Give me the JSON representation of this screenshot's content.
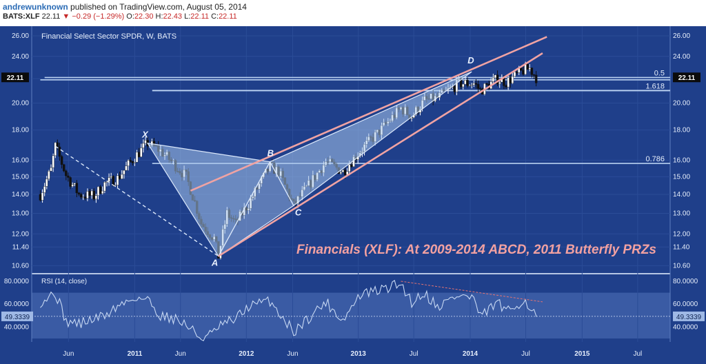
{
  "header": {
    "author": "andrewunknown",
    "published": "published on TradingView.com, August 05, 2014",
    "symbol": "BATS:XLF",
    "last": "22.11",
    "change": "−0.29 (−1.29%)",
    "o_label": "O:",
    "o": "22.30",
    "h_label": "H:",
    "h": "22.43",
    "l_label": "L:",
    "l": "22.11",
    "c_label": "C:",
    "c": "22.11"
  },
  "colors": {
    "background": "#1f3f8a",
    "rsi_band": "#3a5ba4",
    "candle_up": "#ffffff",
    "candle_down": "#111111",
    "pattern_fill": "#a8c6ec",
    "pattern_line": "#dbe8fb",
    "channel": "#f0a3a3",
    "level": "#b9d0f0",
    "rsi_line": "#c7d8f3",
    "title_text": "#f2a1a1"
  },
  "chart_data": [
    {
      "type": "candlestick",
      "subtitle": "Financial Select Sector SPDR, W, BATS",
      "annotation": "Financials (XLF): At 2009-2014 ABCD, 2011 Butterfly PRZs",
      "ylim": [
        10.3,
        27.0
      ],
      "y_scale": "log",
      "y_ticks": [
        "26.00",
        "24.00",
        "22.00",
        "20.00",
        "18.00",
        "16.00",
        "15.00",
        "14.00",
        "13.00",
        "12.00",
        "11.40",
        "10.60"
      ],
      "last_price_label": "22.11",
      "x_ticks": [
        "Jun",
        "2011",
        "Jun",
        "2012",
        "Jun",
        "2013",
        "Jul",
        "2014",
        "Jul",
        "2015",
        "Jul"
      ],
      "grid": true,
      "series": [
        {
          "name": "XLF weekly close",
          "x": [
            "2010-03-01",
            "2010-04-05",
            "2010-04-19",
            "2010-05-24",
            "2010-07-05",
            "2010-08-23",
            "2010-09-27",
            "2010-11-08",
            "2011-01-03",
            "2011-02-14",
            "2011-03-28",
            "2011-05-09",
            "2011-06-20",
            "2011-08-08",
            "2011-09-19",
            "2011-10-03",
            "2011-10-31",
            "2011-11-28",
            "2012-01-09",
            "2012-03-19",
            "2012-04-16",
            "2012-06-04",
            "2012-07-23",
            "2012-09-17",
            "2012-11-12",
            "2013-01-07",
            "2013-03-11",
            "2013-05-20",
            "2013-06-24",
            "2013-08-05",
            "2013-09-16",
            "2013-11-25",
            "2014-01-13",
            "2014-02-03",
            "2014-03-31",
            "2014-04-28",
            "2014-06-23",
            "2014-07-14",
            "2014-08-04"
          ],
          "values": [
            14.0,
            15.4,
            16.9,
            15.1,
            14.0,
            13.9,
            14.6,
            14.9,
            16.2,
            17.1,
            16.6,
            15.8,
            15.0,
            12.5,
            11.8,
            11.0,
            13.0,
            12.5,
            13.5,
            15.6,
            15.3,
            13.4,
            14.5,
            15.9,
            15.3,
            16.6,
            17.9,
            19.6,
            19.0,
            20.2,
            20.4,
            21.6,
            21.6,
            21.0,
            22.0,
            21.7,
            22.7,
            22.9,
            22.11
          ]
        },
        {
          "name": "0.5",
          "type": "hline",
          "value": 22.1
        },
        {
          "name": "",
          "type": "hline",
          "value": 21.9
        },
        {
          "name": "1.618",
          "type": "hline",
          "value": 21.0
        },
        {
          "name": "0.786",
          "type": "hline",
          "value": 15.8
        }
      ],
      "pattern_points": [
        {
          "label": "X",
          "x": "2011-02-14",
          "y": 17.1
        },
        {
          "label": "A",
          "x": "2011-10-03",
          "y": 11.0
        },
        {
          "label": "B",
          "x": "2012-03-19",
          "y": 15.9
        },
        {
          "label": "C",
          "x": "2012-06-04",
          "y": 13.4
        },
        {
          "label": "D",
          "x": "2014-01-06",
          "y": 22.6
        }
      ],
      "swing_high_2010": {
        "x": "2010-04-19",
        "y": 16.9
      }
    },
    {
      "type": "line",
      "subtitle": "RSI (14, close)",
      "ylim": [
        27,
        86
      ],
      "y_ticks": [
        "80.0000",
        "60.0000",
        "40.0000"
      ],
      "last_value_label": "49.3339",
      "band": [
        30,
        70
      ],
      "series": [
        {
          "name": "RSI",
          "x": [
            "2010-03-01",
            "2010-04-19",
            "2010-05-24",
            "2010-07-05",
            "2010-09-27",
            "2010-11-08",
            "2011-01-03",
            "2011-02-14",
            "2011-03-28",
            "2011-05-09",
            "2011-06-20",
            "2011-08-08",
            "2011-09-19",
            "2011-10-03",
            "2011-11-28",
            "2012-01-09",
            "2012-03-19",
            "2012-06-04",
            "2012-07-23",
            "2012-09-17",
            "2012-11-12",
            "2013-01-07",
            "2013-03-11",
            "2013-05-20",
            "2013-06-24",
            "2013-08-05",
            "2013-09-16",
            "2013-11-25",
            "2014-01-13",
            "2014-02-03",
            "2014-03-31",
            "2014-04-28",
            "2014-06-23",
            "2014-07-14",
            "2014-08-04"
          ],
          "values": [
            62,
            70,
            45,
            43,
            50,
            58,
            66,
            64,
            50,
            48,
            42,
            30,
            35,
            40,
            47,
            58,
            63,
            36,
            48,
            62,
            46,
            68,
            72,
            78,
            62,
            70,
            58,
            68,
            65,
            48,
            62,
            52,
            64,
            58,
            49
          ]
        }
      ],
      "divergence_line": [
        {
          "x": "2013-05-20",
          "y": 80
        },
        {
          "x": "2014-08-25",
          "y": 62
        }
      ]
    }
  ]
}
